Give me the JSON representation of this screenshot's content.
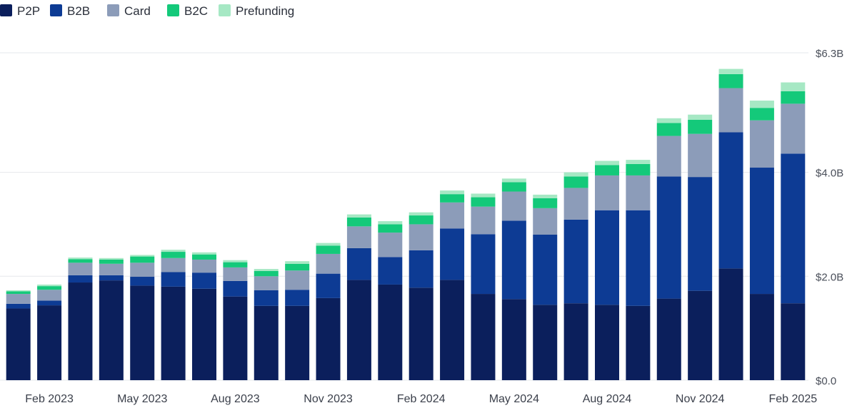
{
  "chart_data": {
    "type": "bar",
    "stacked": true,
    "x_labels": [
      "Feb 2023",
      "May 2023",
      "Aug 2023",
      "Nov 2023",
      "Feb 2024",
      "May 2024",
      "Aug 2024",
      "Nov 2024",
      "Feb 2025"
    ],
    "x_label_bar_index": [
      1,
      4,
      7,
      10,
      13,
      16,
      19,
      22,
      25
    ],
    "y_ticks": [
      "$0.0",
      "$2.0B",
      "$4.0B",
      "$6.3B"
    ],
    "y_tick_values": [
      0,
      2.0,
      4.0,
      6.3
    ],
    "ylim": [
      0,
      6.3
    ],
    "grid": true,
    "legend_position": "top-left",
    "series": [
      {
        "name": "P2P",
        "color": "#0b1f5c",
        "values": [
          1.38,
          1.44,
          1.88,
          1.92,
          1.82,
          1.8,
          1.76,
          1.61,
          1.43,
          1.43,
          1.58,
          1.93,
          1.84,
          1.78,
          1.93,
          1.66,
          1.56,
          1.45,
          1.48,
          1.45,
          1.43,
          1.57,
          1.72,
          2.15,
          1.66,
          1.48
        ]
      },
      {
        "name": "B2B",
        "color": "#0d3b94",
        "values": [
          0.09,
          0.09,
          0.14,
          0.1,
          0.17,
          0.28,
          0.31,
          0.3,
          0.3,
          0.31,
          0.47,
          0.61,
          0.53,
          0.72,
          0.99,
          1.15,
          1.51,
          1.35,
          1.61,
          1.82,
          1.84,
          2.35,
          2.19,
          2.62,
          2.43,
          2.88
        ]
      },
      {
        "name": "Card",
        "color": "#8c9cb9",
        "values": [
          0.19,
          0.21,
          0.24,
          0.22,
          0.27,
          0.27,
          0.25,
          0.26,
          0.27,
          0.37,
          0.38,
          0.42,
          0.47,
          0.5,
          0.5,
          0.53,
          0.56,
          0.51,
          0.61,
          0.67,
          0.67,
          0.78,
          0.83,
          0.85,
          0.91,
          0.96
        ]
      },
      {
        "name": "B2C",
        "color": "#14c97a",
        "values": [
          0.05,
          0.07,
          0.07,
          0.08,
          0.12,
          0.12,
          0.1,
          0.1,
          0.1,
          0.13,
          0.16,
          0.17,
          0.16,
          0.17,
          0.16,
          0.18,
          0.18,
          0.19,
          0.22,
          0.2,
          0.22,
          0.25,
          0.27,
          0.27,
          0.24,
          0.24
        ]
      },
      {
        "name": "Prefunding",
        "color": "#a6e8c4",
        "values": [
          0.02,
          0.03,
          0.03,
          0.03,
          0.03,
          0.04,
          0.04,
          0.04,
          0.04,
          0.05,
          0.05,
          0.06,
          0.06,
          0.06,
          0.07,
          0.07,
          0.07,
          0.07,
          0.08,
          0.08,
          0.08,
          0.09,
          0.1,
          0.1,
          0.14,
          0.17
        ]
      }
    ]
  }
}
